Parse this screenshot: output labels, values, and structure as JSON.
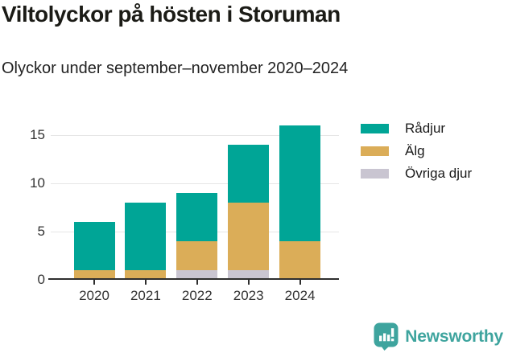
{
  "chart_data": {
    "type": "bar",
    "stacked": true,
    "title": "Viltolyckor på hösten i Storuman",
    "subtitle": "Olyckor under september–november 2020–2024",
    "categories": [
      "2020",
      "2021",
      "2022",
      "2023",
      "2024"
    ],
    "series": [
      {
        "name": "Rådjur",
        "color": "#00A596",
        "values": [
          5,
          7,
          5,
          6,
          12
        ]
      },
      {
        "name": "Älg",
        "color": "#DBAD58",
        "values": [
          1,
          1,
          3,
          7,
          4
        ]
      },
      {
        "name": "Övriga djur",
        "color": "#C9C5D1",
        "values": [
          0,
          0,
          1,
          1,
          0
        ]
      }
    ],
    "stack_order_bottom_to_top": [
      "Övriga djur",
      "Älg",
      "Rådjur"
    ],
    "totals": [
      6,
      8,
      9,
      14,
      16
    ],
    "xlabel": "",
    "ylabel": "",
    "yticks": [
      0,
      5,
      10,
      15
    ],
    "ylim": [
      0,
      16.7
    ],
    "grid": true,
    "legend_position": "top-right"
  },
  "branding": {
    "logo_text": "Newsworthy",
    "logo_color": "#3EA49E",
    "logo_icon": "newsworthy-speech-bubble-bar-chart-icon"
  }
}
